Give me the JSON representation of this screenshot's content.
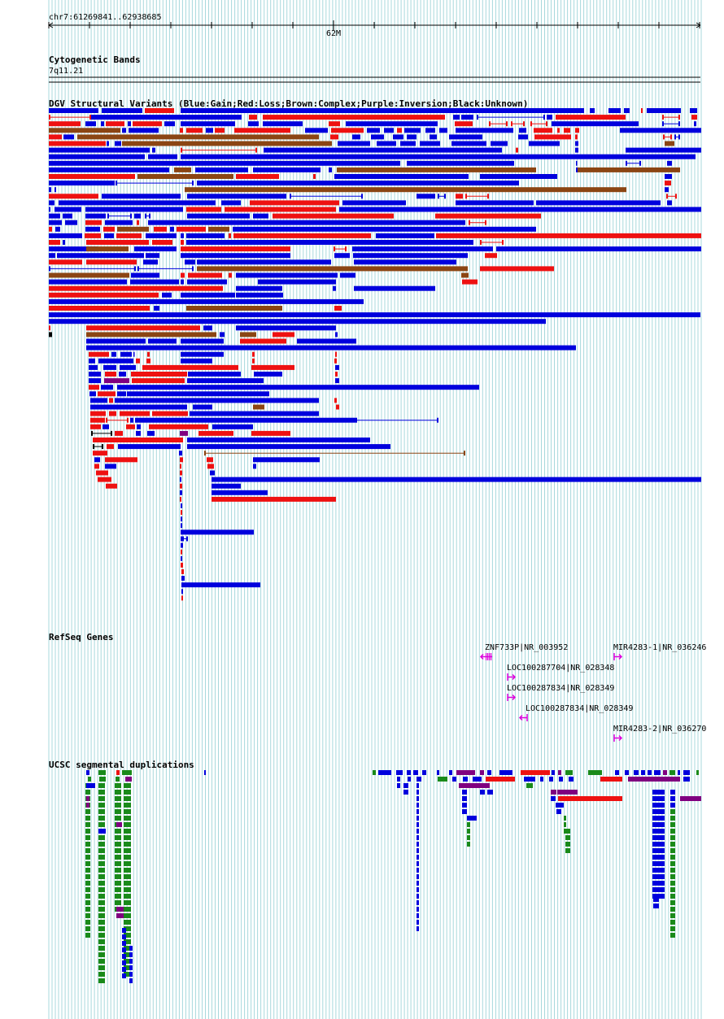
{
  "coordinates": "chr7:61269841..62938685",
  "ruler_label": "62M",
  "tracks": {
    "cytoband": {
      "title": "Cytogenetic Bands",
      "band": "7q11.21"
    },
    "dgv": {
      "title": "DGV Structural Variants (Blue:Gain;Red:Loss;Brown:Complex;Purple:Inversion;Black:Unknown)"
    },
    "refseq": {
      "title": "RefSeq Genes"
    },
    "segdup": {
      "title": "UCSC segmental duplications"
    }
  },
  "genes": [
    {
      "label": "ZNF733P|NR_003952",
      "strand": "-"
    },
    {
      "label": "MIR4283-1|NR_036246",
      "strand": "+"
    },
    {
      "label": "LOC100287704|NR_028348",
      "strand": "+"
    },
    {
      "label": "LOC100287834|NR_028349",
      "strand": "+"
    },
    {
      "label": "LOC100287834|NR_028349",
      "strand": "-"
    },
    {
      "label": "MIR4283-2|NR_036270",
      "strand": "+"
    }
  ],
  "colors": {
    "gain": "#0000dd",
    "loss": "#ee1111",
    "complex": "#8b4513",
    "inversion": "#800080",
    "unknown": "#000000",
    "segdup_green": "#1a8a1a",
    "gene": "#dd00dd",
    "grid": "#a8d8dc"
  }
}
